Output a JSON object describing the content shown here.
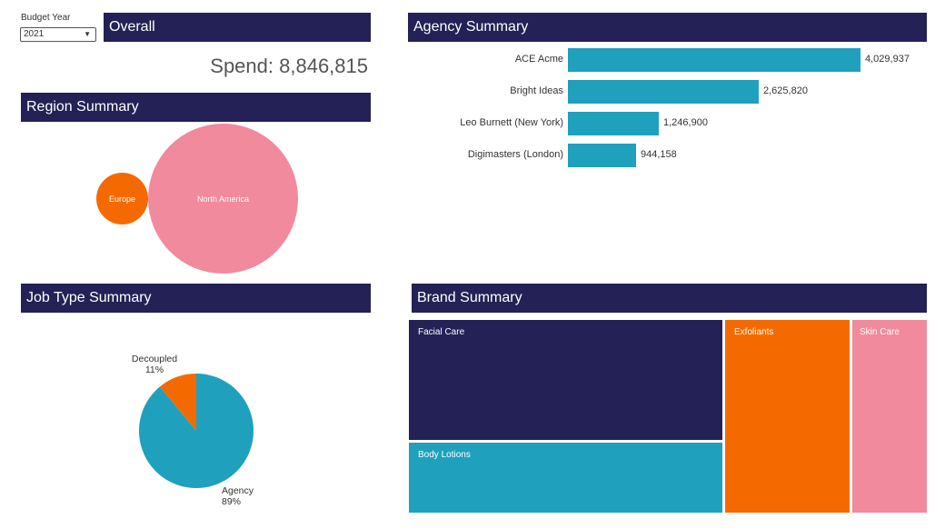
{
  "colors": {
    "header_bg": "#232155",
    "navy": "#232155",
    "teal": "#1fa0bd",
    "orange": "#f56a00",
    "pink": "#f08a9c"
  },
  "filter": {
    "label": "Budget Year",
    "selected": "2021",
    "caret_icon": "caret-down-icon"
  },
  "overall": {
    "title": "Overall",
    "spend_label": "Spend:",
    "spend_value": "8,846,815"
  },
  "chart_data": [
    {
      "type": "bubble",
      "title": "Region Summary",
      "categories": [
        "Europe",
        "North America"
      ],
      "relative_size": [
        0.11,
        1.0
      ],
      "colors": [
        "#f56a00",
        "#f08a9c"
      ]
    },
    {
      "type": "bar",
      "orientation": "horizontal",
      "title": "Agency Summary",
      "categories": [
        "ACE Acme",
        "Bright Ideas",
        "Leo Burnett (New York)",
        "Digimasters (London)"
      ],
      "values": [
        4029937,
        2625820,
        1246900,
        944158
      ],
      "value_labels": [
        "4,029,937",
        "2,625,820",
        "1,246,900",
        "944,158"
      ],
      "xlim": [
        0,
        4029937
      ]
    },
    {
      "type": "pie",
      "title": "Job Type Summary",
      "categories": [
        "Decoupled",
        "Agency"
      ],
      "values": [
        11,
        89
      ],
      "value_labels": [
        "11%",
        "89%"
      ],
      "colors": [
        "#f56a00",
        "#1fa0bd"
      ]
    },
    {
      "type": "treemap",
      "title": "Brand Summary",
      "categories": [
        "Facial Care",
        "Body Lotions",
        "Exfoliants",
        "Skin Care"
      ],
      "colors": [
        "#232155",
        "#1fa0bd",
        "#f56a00",
        "#f08a9c"
      ]
    }
  ]
}
